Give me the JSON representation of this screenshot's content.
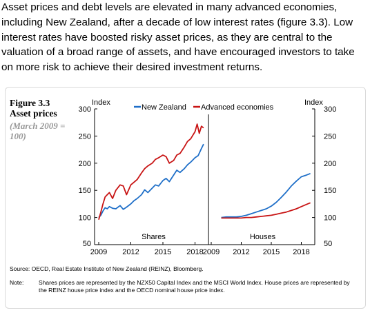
{
  "intro_text": "Asset prices and debt levels are elevated in many advanced economies, including New Zealand, after a decade of low interest rates (figure 3.3). Low interest rates have boosted risky asset prices, as they are central to the valuation of a broad range of assets, and have encouraged investors to take on more risk to achieve their desired investment returns.",
  "figure": {
    "label": "Figure 3.3",
    "title": "Asset prices",
    "subtitle": "(March 2009 = 100)",
    "source": "Source:   OECD, Real Estate Institute of New Zealand (REINZ), Bloomberg.",
    "note_label": "Note:",
    "note_text": "Shares prices are represented by the NZX50 Capital Index and the MSCI World Index. House prices are represented by the REINZ house price index and the OECD nominal house price index."
  },
  "chart_data": {
    "type": "line",
    "y_axis_label_left": "Index",
    "y_axis_label_right": "Index",
    "ylim": [
      50,
      300
    ],
    "yticks": [
      50,
      100,
      150,
      200,
      250,
      300
    ],
    "legend": [
      {
        "name": "New Zealand",
        "color": "#1f6fc8"
      },
      {
        "name": "Advanced economies",
        "color": "#c81414"
      }
    ],
    "legend_position": "top",
    "panels": [
      {
        "name": "Shares",
        "xlim": [
          2009,
          2019
        ],
        "xticks": [
          2009,
          2012,
          2015,
          2018
        ],
        "series": [
          {
            "name": "New Zealand",
            "color": "#1f6fc8",
            "x": [
              2009.0,
              2009.2,
              2009.4,
              2009.6,
              2009.8,
              2010.0,
              2010.3,
              2010.6,
              2011.0,
              2011.3,
              2011.6,
              2012.0,
              2012.3,
              2012.6,
              2013.0,
              2013.3,
              2013.6,
              2014.0,
              2014.3,
              2014.6,
              2015.0,
              2015.3,
              2015.6,
              2016.0,
              2016.3,
              2016.6,
              2017.0,
              2017.3,
              2017.6,
              2018.0,
              2018.3,
              2018.6,
              2018.8
            ],
            "y": [
              100,
              104,
              112,
              118,
              116,
              120,
              117,
              116,
              122,
              115,
              119,
              125,
              131,
              135,
              142,
              151,
              146,
              154,
              160,
              158,
              168,
              172,
              166,
              178,
              187,
              183,
              190,
              197,
              202,
              210,
              214,
              227,
              235
            ]
          },
          {
            "name": "Advanced economies",
            "color": "#c81414",
            "x": [
              2009.0,
              2009.2,
              2009.4,
              2009.6,
              2009.8,
              2010.0,
              2010.3,
              2010.6,
              2011.0,
              2011.3,
              2011.6,
              2012.0,
              2012.3,
              2012.6,
              2013.0,
              2013.3,
              2013.6,
              2014.0,
              2014.3,
              2014.6,
              2015.0,
              2015.3,
              2015.6,
              2016.0,
              2016.3,
              2016.6,
              2017.0,
              2017.3,
              2017.6,
              2018.0,
              2018.2,
              2018.4,
              2018.6,
              2018.8
            ],
            "y": [
              96,
              110,
              125,
              138,
              142,
              146,
              135,
              150,
              160,
              158,
              142,
              160,
              165,
              170,
              182,
              190,
              195,
              200,
              207,
              210,
              215,
              212,
              200,
              205,
              215,
              218,
              230,
              240,
              245,
              258,
              272,
              255,
              268,
              265
            ]
          }
        ]
      },
      {
        "name": "Houses",
        "xlim": [
          2009,
          2019
        ],
        "xticks": [
          2009,
          2012,
          2015,
          2018
        ],
        "series": [
          {
            "name": "New Zealand",
            "color": "#1f6fc8",
            "x": [
              2010.0,
              2010.5,
              2011.0,
              2011.5,
              2012.0,
              2012.5,
              2013.0,
              2013.5,
              2014.0,
              2014.5,
              2015.0,
              2015.5,
              2016.0,
              2016.5,
              2017.0,
              2017.5,
              2018.0,
              2018.5,
              2018.9
            ],
            "y": [
              100,
              101,
              101,
              101,
              102,
              104,
              107,
              110,
              113,
              116,
              121,
              128,
              137,
              147,
              158,
              167,
              175,
              178,
              181
            ]
          },
          {
            "name": "Advanced economies",
            "color": "#c81414",
            "x": [
              2010.0,
              2010.5,
              2011.0,
              2011.5,
              2012.0,
              2012.5,
              2013.0,
              2013.5,
              2014.0,
              2014.5,
              2015.0,
              2015.5,
              2016.0,
              2016.5,
              2017.0,
              2017.5,
              2018.0,
              2018.5,
              2018.9
            ],
            "y": [
              99,
              99,
              99,
              99,
              99,
              100,
              100,
              101,
              102,
              103,
              104,
              106,
              108,
              110,
              113,
              116,
              120,
              124,
              127
            ]
          }
        ]
      }
    ]
  }
}
